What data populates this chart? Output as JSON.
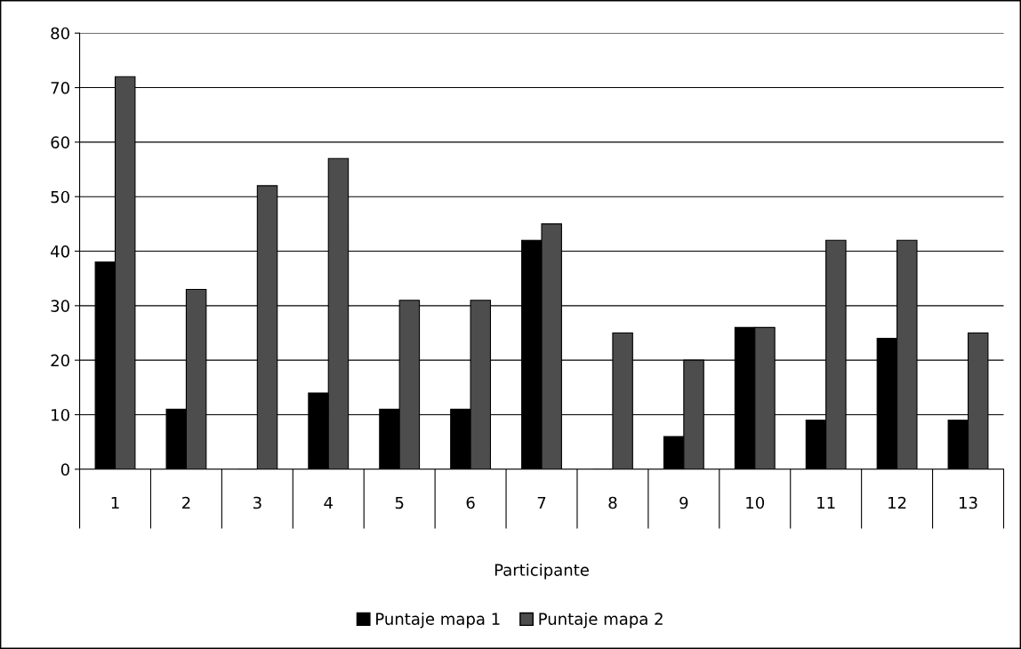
{
  "chart_data": {
    "type": "bar",
    "xlabel": "Participante",
    "categories": [
      "1",
      "2",
      "3",
      "4",
      "5",
      "6",
      "7",
      "8",
      "9",
      "10",
      "11",
      "12",
      "13"
    ],
    "series": [
      {
        "name": "Puntaje mapa 1",
        "color": "#000000",
        "values": [
          38,
          11,
          0,
          14,
          11,
          11,
          42,
          0,
          6,
          26,
          9,
          24,
          9
        ]
      },
      {
        "name": "Puntaje mapa 2",
        "color": "#4d4d4d",
        "values": [
          72,
          33,
          52,
          57,
          31,
          31,
          45,
          25,
          20,
          26,
          42,
          42,
          25
        ]
      }
    ],
    "ylim": [
      0,
      80
    ],
    "yticks": [
      0,
      10,
      20,
      30,
      40,
      50,
      60,
      70,
      80
    ],
    "grid": "y",
    "legend": "bottom"
  }
}
